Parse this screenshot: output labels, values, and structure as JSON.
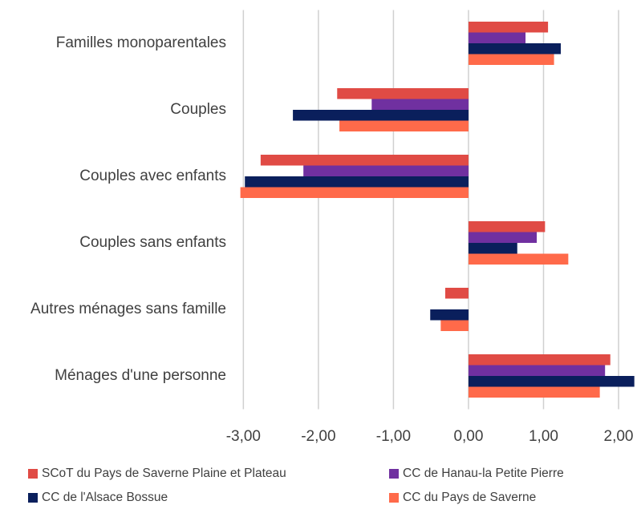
{
  "chart_data": {
    "type": "hbar",
    "categories": [
      "Familles monoparentales",
      "Couples",
      "Couples avec enfants",
      "Couples sans enfants",
      "Autres ménages sans famille",
      "Ménages d'une personne"
    ],
    "series": [
      {
        "name": "SCoT du Pays de Saverne Plaine et Plateau",
        "color": "#e04b45",
        "values": [
          1.06,
          -1.75,
          -2.77,
          1.02,
          -0.31,
          1.89
        ]
      },
      {
        "name": "CC de Hanau-la Petite Pierre",
        "color": "#7030a0",
        "values": [
          0.76,
          -1.29,
          -2.2,
          0.91,
          0,
          1.82
        ]
      },
      {
        "name": "CC de l'Alsace Bossue",
        "color": "#0a1f5c",
        "values": [
          1.23,
          -2.34,
          -2.98,
          0.65,
          -0.51,
          2.21
        ]
      },
      {
        "name": "CC du Pays de Saverne",
        "color": "#ff6a4a",
        "values": [
          1.14,
          -1.72,
          -3.04,
          1.33,
          -0.37,
          1.75
        ]
      }
    ],
    "xlim": [
      -3.1,
      2.22
    ],
    "xticks": [
      {
        "value": -3,
        "label": "-3,00"
      },
      {
        "value": -2,
        "label": "-2,00"
      },
      {
        "value": -1,
        "label": "-1,00"
      },
      {
        "value": 0,
        "label": "0,00"
      },
      {
        "value": 1,
        "label": "1,00"
      },
      {
        "value": 2,
        "label": "2,00"
      }
    ],
    "grid": true
  }
}
